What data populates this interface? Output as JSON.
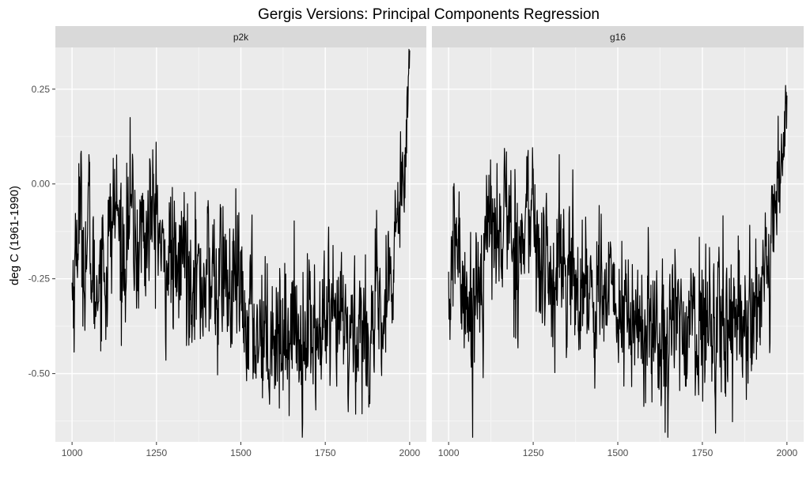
{
  "chart_data": {
    "type": "line",
    "title": "Gergis Versions: Principal Components Regression",
    "ylabel": "deg C (1961-1990)",
    "xlabel": "",
    "xlim": [
      1000,
      2000
    ],
    "ylim": [
      -0.68,
      0.36
    ],
    "x_ticks": [
      1000,
      1250,
      1500,
      1750,
      2000
    ],
    "y_ticks": [
      0.25,
      0.0,
      -0.25,
      -0.5
    ],
    "y_tick_labels": [
      "0.25",
      "0.00",
      "-0.25",
      "-0.50"
    ],
    "grid": true,
    "line_color": "#000000",
    "series": [
      {
        "name": "p2k",
        "x": [
          1000,
          1010,
          1020,
          1030,
          1040,
          1050,
          1060,
          1070,
          1080,
          1090,
          1100,
          1110,
          1120,
          1130,
          1140,
          1150,
          1160,
          1170,
          1180,
          1190,
          1200,
          1210,
          1220,
          1230,
          1240,
          1250,
          1260,
          1270,
          1280,
          1290,
          1300,
          1310,
          1320,
          1330,
          1340,
          1350,
          1360,
          1370,
          1380,
          1390,
          1400,
          1410,
          1420,
          1430,
          1440,
          1450,
          1460,
          1470,
          1480,
          1490,
          1500,
          1510,
          1520,
          1530,
          1540,
          1550,
          1560,
          1570,
          1580,
          1590,
          1600,
          1610,
          1620,
          1630,
          1640,
          1650,
          1660,
          1670,
          1680,
          1690,
          1700,
          1710,
          1720,
          1730,
          1740,
          1750,
          1760,
          1770,
          1780,
          1790,
          1800,
          1810,
          1820,
          1830,
          1840,
          1850,
          1860,
          1870,
          1880,
          1890,
          1900,
          1910,
          1920,
          1930,
          1940,
          1950,
          1960,
          1970,
          1980,
          1990,
          2000
        ],
        "values": [
          -0.28,
          -0.22,
          -0.05,
          -0.15,
          -0.2,
          -0.1,
          -0.25,
          -0.3,
          -0.2,
          -0.18,
          -0.25,
          -0.15,
          -0.1,
          -0.05,
          -0.12,
          -0.2,
          -0.15,
          -0.05,
          -0.1,
          -0.2,
          -0.15,
          -0.1,
          -0.18,
          -0.05,
          -0.12,
          -0.05,
          -0.15,
          -0.25,
          -0.2,
          -0.18,
          -0.22,
          -0.28,
          -0.2,
          -0.15,
          -0.22,
          -0.25,
          -0.18,
          -0.22,
          -0.3,
          -0.25,
          -0.2,
          -0.28,
          -0.22,
          -0.3,
          -0.25,
          -0.2,
          -0.28,
          -0.32,
          -0.25,
          -0.28,
          -0.3,
          -0.38,
          -0.35,
          -0.32,
          -0.38,
          -0.4,
          -0.35,
          -0.38,
          -0.42,
          -0.36,
          -0.4,
          -0.38,
          -0.42,
          -0.36,
          -0.4,
          -0.38,
          -0.35,
          -0.4,
          -0.42,
          -0.38,
          -0.36,
          -0.4,
          -0.38,
          -0.42,
          -0.4,
          -0.36,
          -0.38,
          -0.42,
          -0.4,
          -0.38,
          -0.35,
          -0.4,
          -0.42,
          -0.38,
          -0.4,
          -0.36,
          -0.38,
          -0.42,
          -0.4,
          -0.36,
          -0.35,
          -0.38,
          -0.4,
          -0.32,
          -0.3,
          -0.25,
          -0.1,
          -0.02,
          0.05,
          0.15,
          0.32
        ]
      },
      {
        "name": "g16",
        "x": [
          1000,
          1010,
          1020,
          1030,
          1040,
          1050,
          1060,
          1070,
          1080,
          1090,
          1100,
          1110,
          1120,
          1130,
          1140,
          1150,
          1160,
          1170,
          1180,
          1190,
          1200,
          1210,
          1220,
          1230,
          1240,
          1250,
          1260,
          1270,
          1280,
          1290,
          1300,
          1310,
          1320,
          1330,
          1340,
          1350,
          1360,
          1370,
          1380,
          1390,
          1400,
          1410,
          1420,
          1430,
          1440,
          1450,
          1460,
          1470,
          1480,
          1490,
          1500,
          1510,
          1520,
          1530,
          1540,
          1550,
          1560,
          1570,
          1580,
          1590,
          1600,
          1610,
          1620,
          1630,
          1640,
          1650,
          1660,
          1670,
          1680,
          1690,
          1700,
          1710,
          1720,
          1730,
          1740,
          1750,
          1760,
          1770,
          1780,
          1790,
          1800,
          1810,
          1820,
          1830,
          1840,
          1850,
          1860,
          1870,
          1880,
          1890,
          1900,
          1910,
          1920,
          1930,
          1940,
          1950,
          1960,
          1970,
          1980,
          1990,
          2000
        ],
        "values": [
          -0.32,
          -0.25,
          -0.12,
          -0.18,
          -0.3,
          -0.22,
          -0.35,
          -0.38,
          -0.25,
          -0.22,
          -0.25,
          -0.15,
          -0.12,
          -0.08,
          -0.1,
          -0.18,
          -0.12,
          -0.05,
          -0.08,
          -0.2,
          -0.15,
          -0.12,
          -0.18,
          -0.05,
          -0.1,
          -0.05,
          -0.15,
          -0.25,
          -0.22,
          -0.2,
          -0.25,
          -0.3,
          -0.22,
          -0.18,
          -0.25,
          -0.28,
          -0.2,
          -0.25,
          -0.32,
          -0.28,
          -0.22,
          -0.3,
          -0.25,
          -0.32,
          -0.28,
          -0.22,
          -0.3,
          -0.35,
          -0.28,
          -0.3,
          -0.32,
          -0.38,
          -0.35,
          -0.32,
          -0.38,
          -0.4,
          -0.36,
          -0.38,
          -0.42,
          -0.36,
          -0.4,
          -0.38,
          -0.42,
          -0.36,
          -0.4,
          -0.38,
          -0.35,
          -0.38,
          -0.4,
          -0.36,
          -0.35,
          -0.38,
          -0.36,
          -0.4,
          -0.38,
          -0.34,
          -0.36,
          -0.4,
          -0.38,
          -0.36,
          -0.32,
          -0.36,
          -0.38,
          -0.34,
          -0.36,
          -0.32,
          -0.34,
          -0.38,
          -0.36,
          -0.32,
          -0.3,
          -0.34,
          -0.36,
          -0.3,
          -0.28,
          -0.25,
          -0.12,
          -0.05,
          0.02,
          0.1,
          0.22
        ]
      }
    ]
  }
}
